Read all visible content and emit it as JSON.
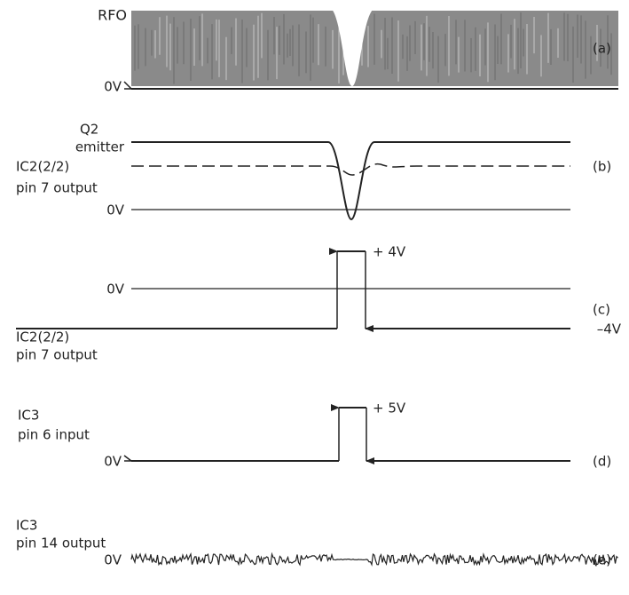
{
  "panels": [
    {
      "tag": "(a)",
      "labels": [
        "RFO",
        "0V"
      ]
    },
    {
      "tag": "(b)",
      "labels": [
        "Q2",
        "emitter",
        "IC2(2/2)",
        "pin 7 output",
        "0V"
      ]
    },
    {
      "tag": "(c)",
      "labels": [
        "0V",
        "IC2(2/2)",
        "pin 7 output",
        "+ 4V",
        "–4V"
      ]
    },
    {
      "tag": "(d)",
      "labels": [
        "IC3",
        "pin 6 input",
        "0V",
        "+ 5V"
      ]
    },
    {
      "tag": "(e)",
      "labels": [
        "IC3",
        "pin 14 output",
        "0V"
      ]
    }
  ]
}
